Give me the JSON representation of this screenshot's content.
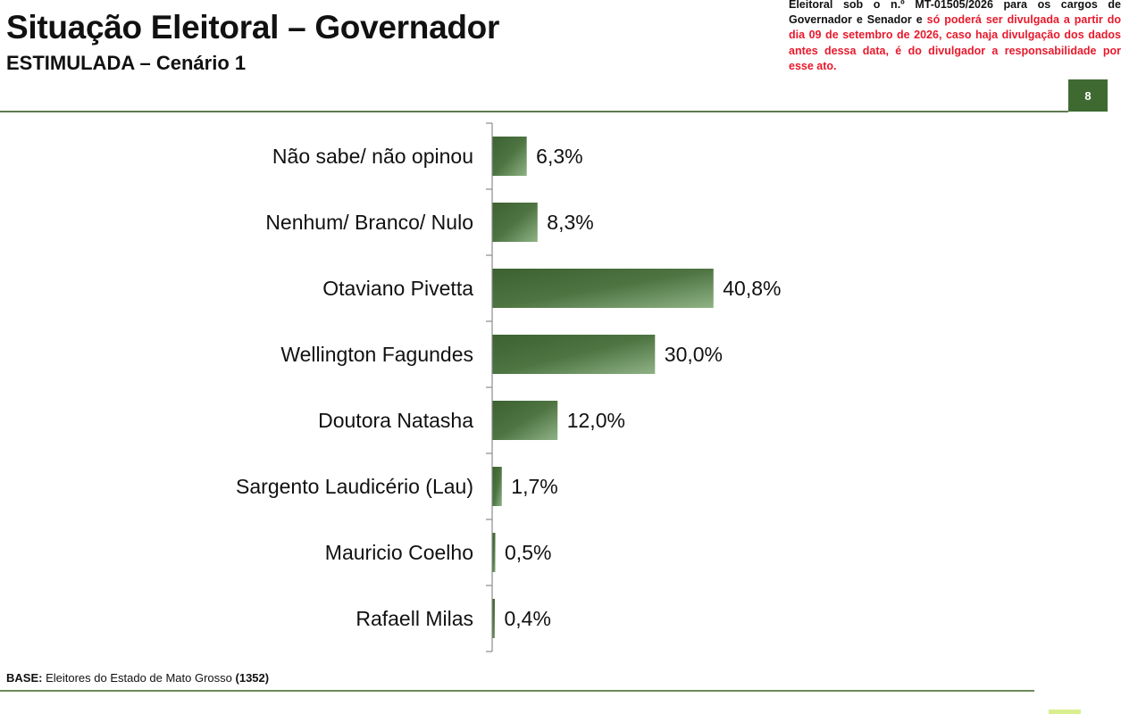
{
  "header": {
    "title": "Situação Eleitoral – Governador",
    "subtitle": "ESTIMULADA – Cenário 1",
    "page_number": "8"
  },
  "notice": {
    "line_1_black": "Eleitoral sob o n.º MT-01505/2026 para os cargos de",
    "line_2_black": "Governador e Senador e ",
    "line_2_red": "só poderá ser divulgada a",
    "red_rest": "partir do dia 09 de setembro de 2026, caso haja divulgação dos dados antes dessa data, é do divulgador a responsabilidade por esse ato."
  },
  "footer": {
    "base_label": "BASE:",
    "base_text": " Eleitores do Estado de Mato Grosso ",
    "base_count": "(1352)"
  },
  "colors": {
    "bar_dark": "#3d6131",
    "bar_light": "#8fb285",
    "accent_green": "#3e6a32",
    "notice_red": "#e8192c"
  },
  "chart_data": {
    "type": "bar",
    "orientation": "horizontal",
    "categories": [
      "Não sabe/ não opinou",
      "Nenhum/ Branco/ Nulo",
      "Otaviano Pivetta",
      "Wellington Fagundes",
      "Doutora Natasha",
      "Sargento Laudicério (Lau)",
      "Mauricio Coelho",
      "Rafaell Milas"
    ],
    "values": [
      6.3,
      8.3,
      40.8,
      30.0,
      12.0,
      1.7,
      0.5,
      0.4
    ],
    "value_labels": [
      "6,3%",
      "8,3%",
      "40,8%",
      "30,0%",
      "12,0%",
      "1,7%",
      "0,5%",
      "0,4%"
    ],
    "unit": "%",
    "xlim": [
      0,
      100
    ],
    "grid": false,
    "legend": "none"
  }
}
